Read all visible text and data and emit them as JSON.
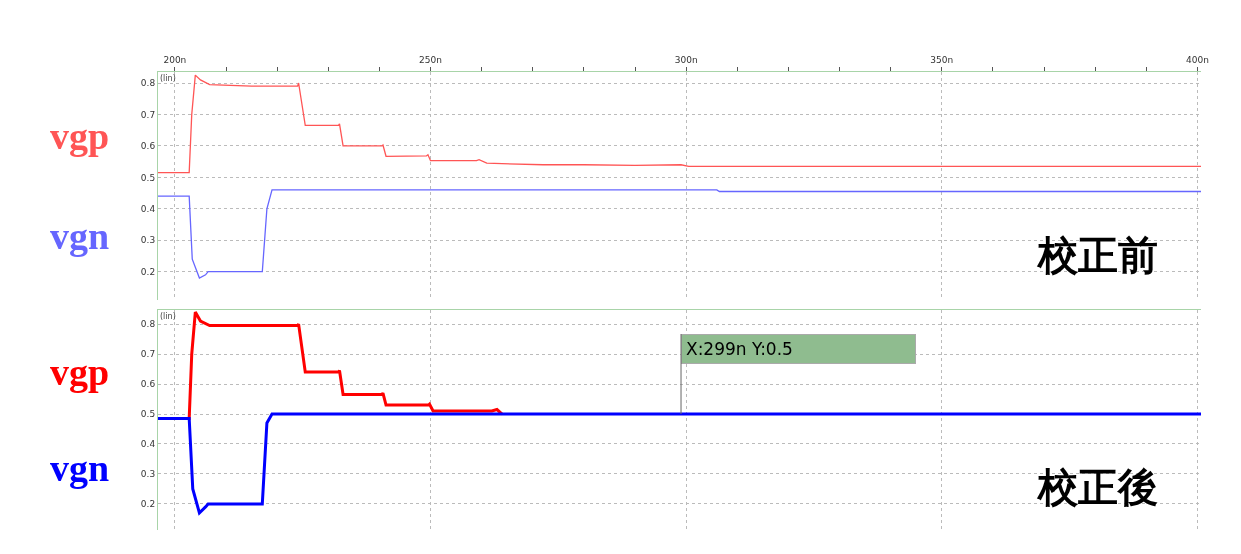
{
  "chart_data": [
    {
      "type": "line",
      "ylabel": "(lin)",
      "annotations": [
        "校正前"
      ],
      "xlim": [
        196.7,
        400.7
      ],
      "ylim": [
        0.11,
        0.835
      ],
      "xticks": [
        {
          "value": 200,
          "label": "200n"
        },
        {
          "value": 210,
          "label": null
        },
        {
          "value": 220,
          "label": null
        },
        {
          "value": 230,
          "label": null
        },
        {
          "value": 240,
          "label": null
        },
        {
          "value": 250,
          "label": "250n"
        },
        {
          "value": 260,
          "label": null
        },
        {
          "value": 270,
          "label": null
        },
        {
          "value": 280,
          "label": null
        },
        {
          "value": 290,
          "label": null
        },
        {
          "value": 300,
          "label": "300n"
        },
        {
          "value": 310,
          "label": null
        },
        {
          "value": 320,
          "label": null
        },
        {
          "value": 330,
          "label": null
        },
        {
          "value": 340,
          "label": null
        },
        {
          "value": 350,
          "label": "350n"
        },
        {
          "value": 360,
          "label": null
        },
        {
          "value": 370,
          "label": null
        },
        {
          "value": 380,
          "label": null
        },
        {
          "value": 390,
          "label": null
        },
        {
          "value": 400,
          "label": "400n"
        }
      ],
      "yticks": [
        0.2,
        0.3,
        0.4,
        0.5,
        0.6,
        0.7,
        0.8
      ],
      "grid": true,
      "legend": false,
      "marker": "none",
      "line_style": "solid",
      "series": [
        {
          "name": "vgp",
          "color": "#ff5555",
          "x": [
            196.7,
            202.8,
            203.3,
            204,
            205,
            206.8,
            215,
            224,
            224.2,
            225.5,
            232,
            232.2,
            232.9,
            240.5,
            240.7,
            241.3,
            249.2,
            249.5,
            250,
            259,
            259.5,
            261,
            272,
            280,
            290,
            299,
            300.5,
            400.7
          ],
          "values": [
            0.515,
            0.515,
            0.7,
            0.825,
            0.81,
            0.795,
            0.79,
            0.79,
            0.8,
            0.665,
            0.665,
            0.67,
            0.6,
            0.6,
            0.603,
            0.567,
            0.568,
            0.572,
            0.553,
            0.553,
            0.556,
            0.545,
            0.54,
            0.54,
            0.538,
            0.54,
            0.535,
            0.535
          ]
        },
        {
          "name": "vgn",
          "color": "#6666ff",
          "x": [
            196.7,
            202.8,
            203.4,
            204.8,
            206,
            206.5,
            217,
            217.1,
            218,
            219,
            260,
            306,
            306.5,
            400.7
          ],
          "values": [
            0.44,
            0.44,
            0.24,
            0.18,
            0.19,
            0.2,
            0.2,
            0.2,
            0.4,
            0.46,
            0.46,
            0.46,
            0.455,
            0.455
          ]
        }
      ]
    },
    {
      "type": "line",
      "ylabel": "(lin)",
      "annotations": [
        "校正後",
        {
          "text": "X:299n Y:0.5",
          "x": 299,
          "y": 0.5
        }
      ],
      "xlim": [
        196.7,
        400.7
      ],
      "ylim": [
        0.113,
        0.847
      ],
      "tick_labels": "y",
      "xticks": [
        {
          "value": 200,
          "label": null
        },
        {
          "value": 250,
          "label": null
        },
        {
          "value": 300,
          "label": null
        },
        {
          "value": 350,
          "label": null
        },
        {
          "value": 400,
          "label": null
        }
      ],
      "yticks": [
        0.2,
        0.3,
        0.4,
        0.5,
        0.6,
        0.7,
        0.8
      ],
      "grid": true,
      "legend": false,
      "marker": "none",
      "line_style": "solid",
      "series": [
        {
          "name": "vgp",
          "color": "#ff0000",
          "x": [
            196.7,
            202.8,
            203.3,
            204,
            205,
            206.8,
            224,
            224.2,
            225.5,
            232,
            232.2,
            232.9,
            240.5,
            240.7,
            241.3,
            249.6,
            249.8,
            250.5,
            262,
            263,
            264
          ],
          "values": [
            0.485,
            0.485,
            0.7,
            0.84,
            0.81,
            0.795,
            0.795,
            0.8,
            0.64,
            0.64,
            0.645,
            0.565,
            0.565,
            0.57,
            0.53,
            0.53,
            0.533,
            0.51,
            0.51,
            0.515,
            0.5
          ]
        },
        {
          "name": "vgn",
          "color": "#0000ff",
          "x": [
            196.7,
            202.8,
            203.5,
            204.8,
            206,
            206.5,
            217,
            217.1,
            218,
            219,
            400.7
          ],
          "values": [
            0.485,
            0.485,
            0.25,
            0.17,
            0.19,
            0.2,
            0.2,
            0.2,
            0.47,
            0.5,
            0.5
          ]
        }
      ]
    }
  ]
}
